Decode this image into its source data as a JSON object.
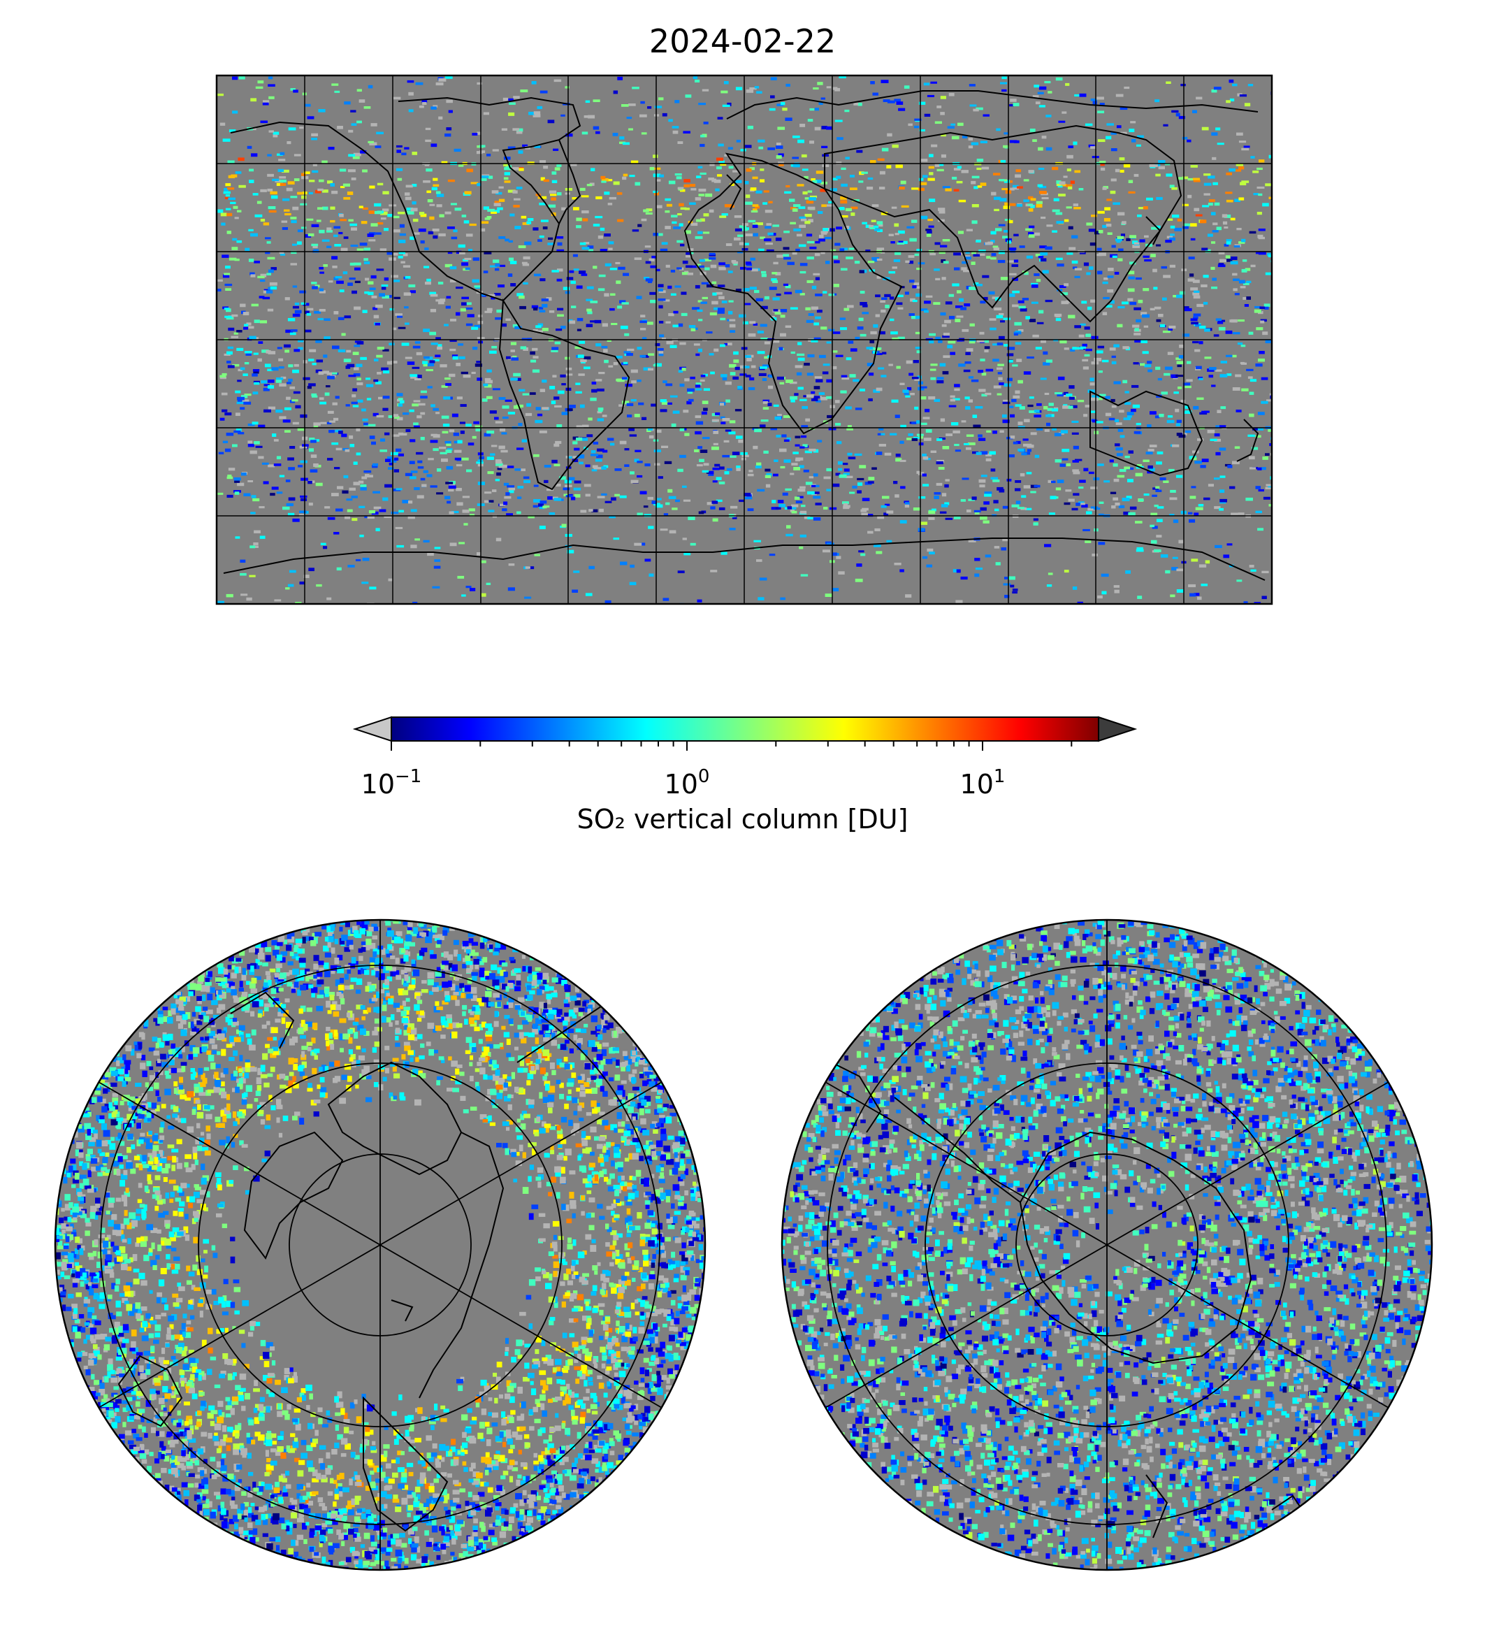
{
  "title": "2024-02-22",
  "colorbar": {
    "label": "SO₂ vertical column [DU]",
    "scale": "log",
    "range": [
      0.1,
      25
    ],
    "ticks": [
      {
        "base": "10",
        "exp": "−1",
        "value": 0.1
      },
      {
        "base": "10",
        "exp": "0",
        "value": 1
      },
      {
        "base": "10",
        "exp": "1",
        "value": 10
      }
    ],
    "colormap": "jet",
    "under_color": "#c8c8c8",
    "over_color": "#3c3c3c",
    "extend": "both"
  },
  "maps": {
    "global": {
      "projection": "plate-carree",
      "background": "#808080"
    },
    "north_polar": {
      "projection": "north-polar-stereographic",
      "background": "#808080"
    },
    "south_polar": {
      "projection": "south-polar-stereographic",
      "background": "#808080"
    }
  }
}
